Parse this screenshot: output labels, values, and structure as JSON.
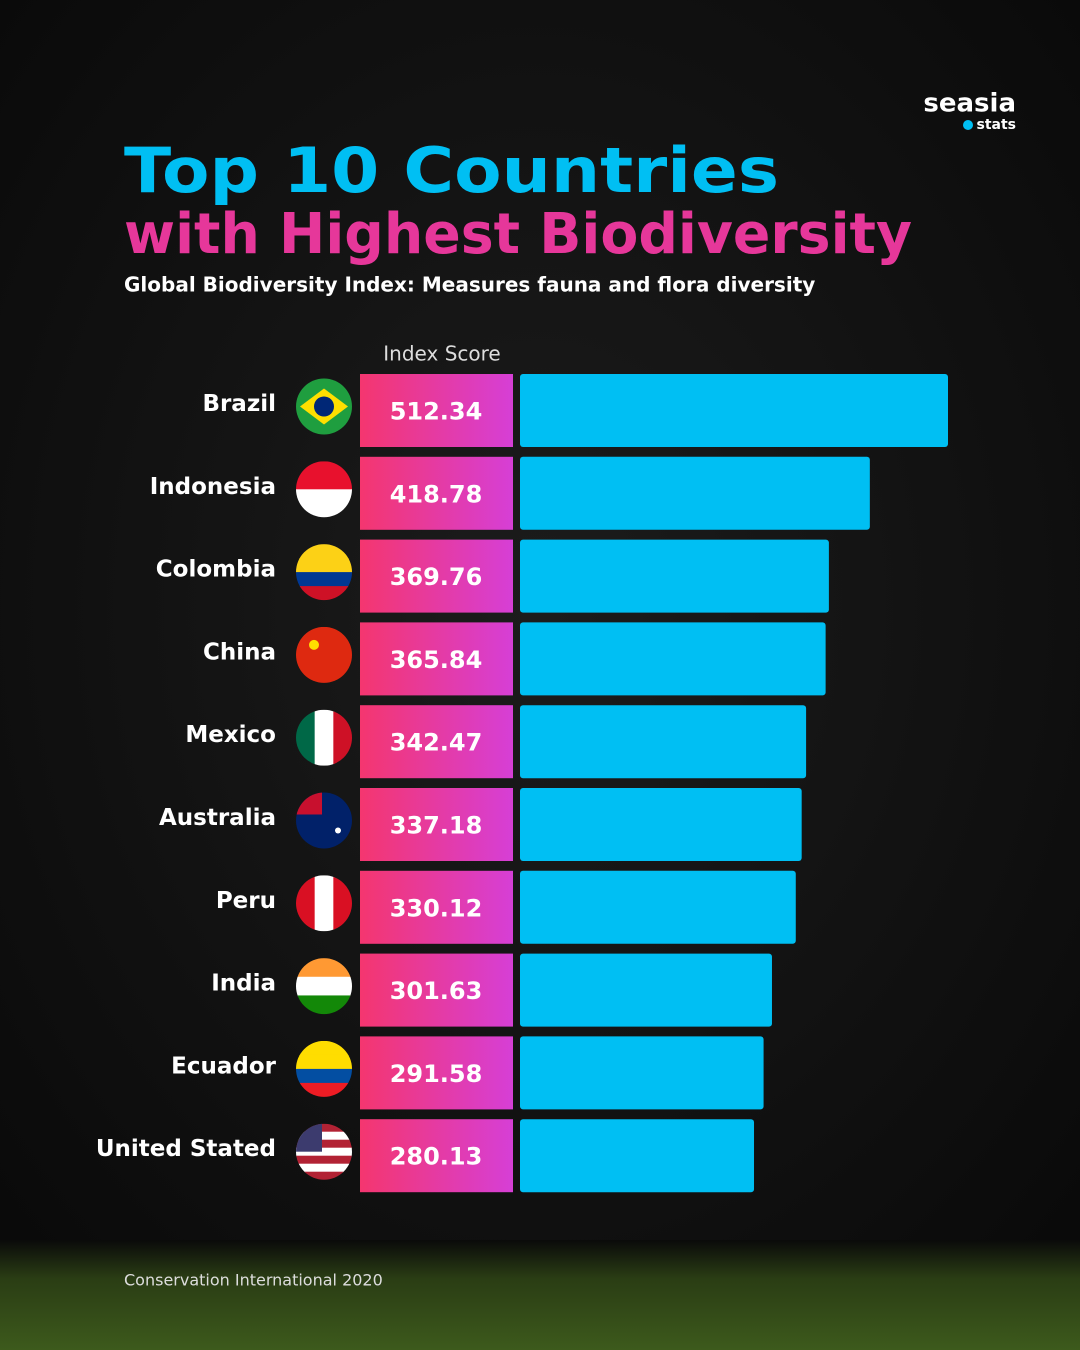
{
  "chart_data": {
    "type": "bar",
    "title": [
      "Top 10 Countries",
      "with Highest Biodiversity"
    ],
    "subtitle": "Global Biodiversity Index: Measures fauna and flora diversity",
    "xlabel": "Index Score",
    "source": "Conservation International 2020",
    "logo": {
      "name": "seasia",
      "tagline": "stats"
    },
    "categories": [
      "Brazil",
      "Indonesia",
      "Colombia",
      "China",
      "Mexico",
      "Australia",
      "Peru",
      "India",
      "Ecuador",
      "United Stated"
    ],
    "values": [
      512.34,
      418.78,
      369.76,
      365.84,
      342.47,
      337.18,
      330.12,
      301.63,
      291.58,
      280.13
    ],
    "color": "#00bff3"
  }
}
